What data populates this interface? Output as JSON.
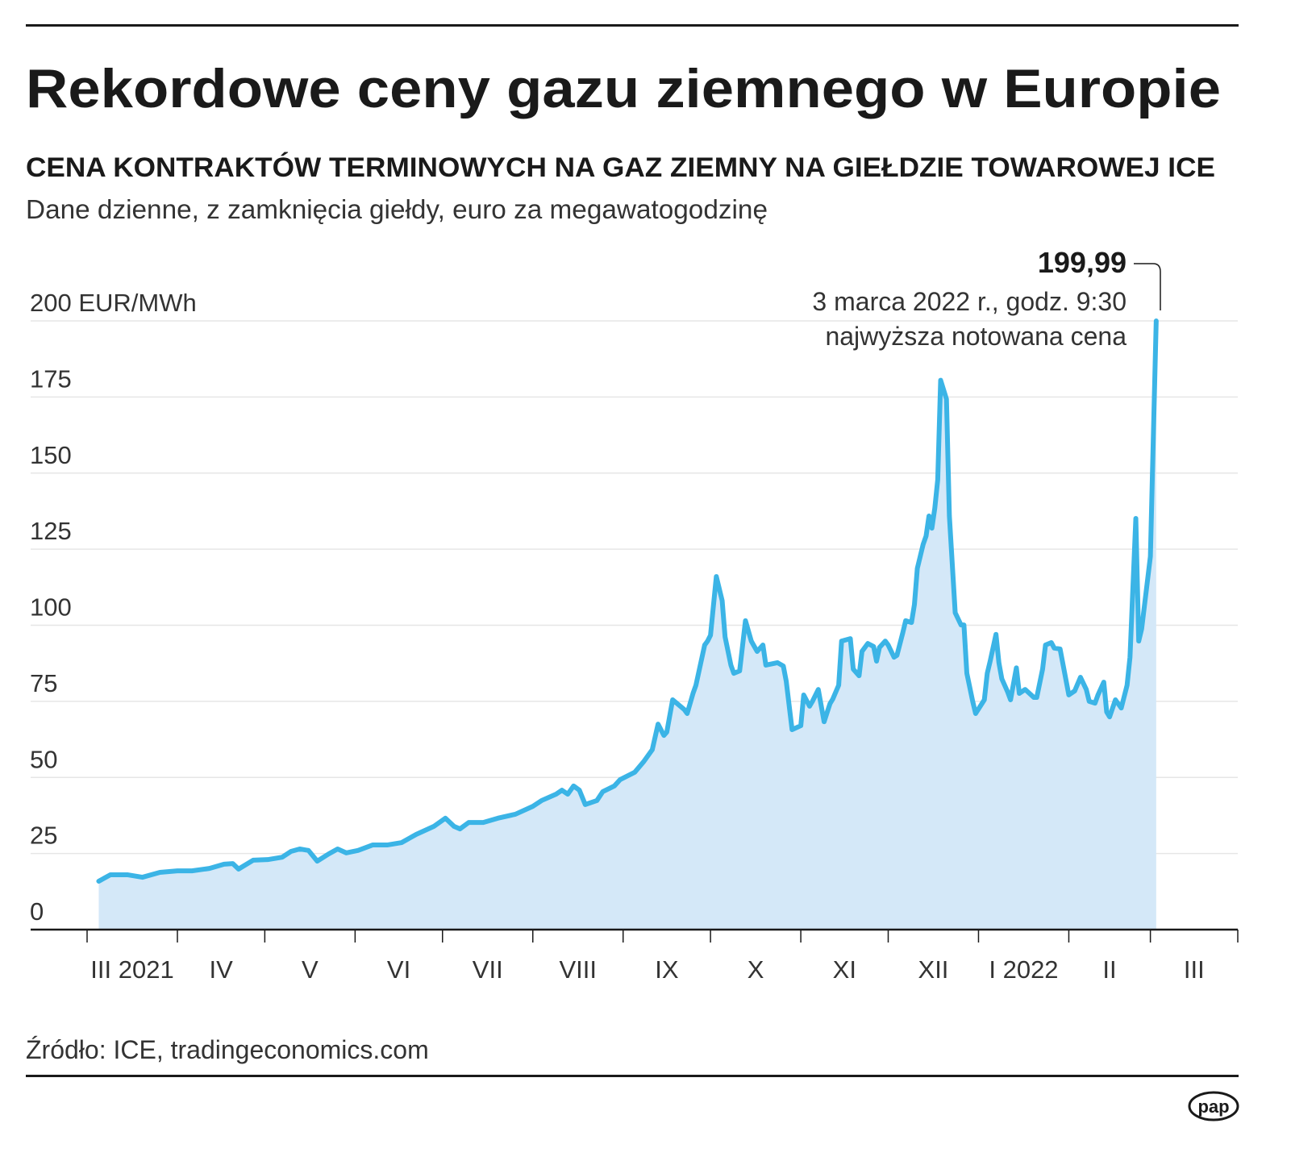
{
  "header": {
    "title": "Rekordowe ceny gazu ziemnego w Europie",
    "subtitle": "CENA KONTRAKTÓW TERMINOWYCH NA GAZ ZIEMNY NA GIEŁDZIE TOWAROWEJ ICE",
    "description": "Dane dzienne, z zamknięcia giełdy, euro za megawatogodzinę"
  },
  "footer": {
    "source": "Źródło: ICE, tradingeconomics.com",
    "logo": "pap"
  },
  "colors": {
    "line": "#3bb4e6",
    "area": "#d4e8f8",
    "grid": "#e6e6e6",
    "axis": "#1a1a1a"
  },
  "chart_data": {
    "type": "area",
    "title": "",
    "xlabel": "",
    "ylabel": "EUR/MWh",
    "ylim": [
      0,
      200
    ],
    "xlim": [
      "2021-03-01",
      "2022-03-31"
    ],
    "grid": true,
    "y_ticks": [
      {
        "value": 0,
        "label": "0"
      },
      {
        "value": 25,
        "label": "25"
      },
      {
        "value": 50,
        "label": "50"
      },
      {
        "value": 75,
        "label": "75"
      },
      {
        "value": 100,
        "label": "100"
      },
      {
        "value": 125,
        "label": "125"
      },
      {
        "value": 150,
        "label": "150"
      },
      {
        "value": 175,
        "label": "175"
      },
      {
        "value": 200,
        "label": "200 EUR/MWh"
      }
    ],
    "x_ticks": [
      {
        "start": "2021-03-01",
        "end": "2021-04-01",
        "label": "III 2021"
      },
      {
        "start": "2021-04-01",
        "end": "2021-05-01",
        "label": "IV"
      },
      {
        "start": "2021-05-01",
        "end": "2021-06-01",
        "label": "V"
      },
      {
        "start": "2021-06-01",
        "end": "2021-07-01",
        "label": "VI"
      },
      {
        "start": "2021-07-01",
        "end": "2021-08-01",
        "label": "VII"
      },
      {
        "start": "2021-08-01",
        "end": "2021-09-01",
        "label": "VIII"
      },
      {
        "start": "2021-09-01",
        "end": "2021-10-01",
        "label": "IX"
      },
      {
        "start": "2021-10-01",
        "end": "2021-11-01",
        "label": "X"
      },
      {
        "start": "2021-11-01",
        "end": "2021-12-01",
        "label": "XI"
      },
      {
        "start": "2021-12-01",
        "end": "2022-01-01",
        "label": "XII"
      },
      {
        "start": "2022-01-01",
        "end": "2022-02-01",
        "label": "I 2022"
      },
      {
        "start": "2022-02-01",
        "end": "2022-03-01",
        "label": "II"
      },
      {
        "start": "2022-03-01",
        "end": "2022-04-01",
        "label": "III"
      }
    ],
    "series": [
      {
        "x": [
          "2021-03-05",
          "2021-03-09",
          "2021-03-15",
          "2021-03-20",
          "2021-03-26",
          "2021-04-01",
          "2021-04-06",
          "2021-04-12",
          "2021-04-17",
          "2021-04-20",
          "2021-04-22",
          "2021-04-27",
          "2021-05-02",
          "2021-05-07",
          "2021-05-10",
          "2021-05-13",
          "2021-05-16",
          "2021-05-19",
          "2021-05-23",
          "2021-05-26",
          "2021-05-29",
          "2021-06-02",
          "2021-06-07",
          "2021-06-12",
          "2021-06-17",
          "2021-06-22",
          "2021-06-28",
          "2021-07-02",
          "2021-07-05",
          "2021-07-07",
          "2021-07-10",
          "2021-07-15",
          "2021-07-20",
          "2021-07-26",
          "2021-08-01",
          "2021-08-04",
          "2021-08-09",
          "2021-08-11",
          "2021-08-13",
          "2021-08-15",
          "2021-08-17",
          "2021-08-19",
          "2021-08-23",
          "2021-08-25",
          "2021-08-29",
          "2021-08-31",
          "2021-09-05",
          "2021-09-08",
          "2021-09-11",
          "2021-09-13",
          "2021-09-15",
          "2021-09-16",
          "2021-09-18",
          "2021-09-22",
          "2021-09-23",
          "2021-09-25",
          "2021-09-26",
          "2021-09-29",
          "2021-09-30",
          "2021-10-01",
          "2021-10-03",
          "2021-10-05",
          "2021-10-06",
          "2021-10-08",
          "2021-10-09",
          "2021-10-11",
          "2021-10-13",
          "2021-10-15",
          "2021-10-17",
          "2021-10-19",
          "2021-10-20",
          "2021-10-24",
          "2021-10-26",
          "2021-10-27",
          "2021-10-29",
          "2021-11-01",
          "2021-11-02",
          "2021-11-04",
          "2021-11-05",
          "2021-11-07",
          "2021-11-09",
          "2021-11-11",
          "2021-11-12",
          "2021-11-14",
          "2021-11-15",
          "2021-11-18",
          "2021-11-19",
          "2021-11-21",
          "2021-11-22",
          "2021-11-24",
          "2021-11-26",
          "2021-11-27",
          "2021-11-28",
          "2021-11-30",
          "2021-12-01",
          "2021-12-03",
          "2021-12-04",
          "2021-12-06",
          "2021-12-07",
          "2021-12-09",
          "2021-12-10",
          "2021-12-11",
          "2021-12-13",
          "2021-12-14",
          "2021-12-15",
          "2021-12-16",
          "2021-12-17",
          "2021-12-18",
          "2021-12-19",
          "2021-12-21",
          "2021-12-22",
          "2021-12-24",
          "2021-12-26",
          "2021-12-27",
          "2021-12-28",
          "2021-12-30",
          "2021-12-31",
          "2022-01-03",
          "2022-01-04",
          "2022-01-05",
          "2022-01-07",
          "2022-01-08",
          "2022-01-09",
          "2022-01-11",
          "2022-01-12",
          "2022-01-14",
          "2022-01-15",
          "2022-01-17",
          "2022-01-20",
          "2022-01-21",
          "2022-01-23",
          "2022-01-24",
          "2022-01-26",
          "2022-01-27",
          "2022-01-29",
          "2022-02-01",
          "2022-02-03",
          "2022-02-05",
          "2022-02-07",
          "2022-02-08",
          "2022-02-10",
          "2022-02-11",
          "2022-02-13",
          "2022-02-14",
          "2022-02-15",
          "2022-02-17",
          "2022-02-19",
          "2022-02-21",
          "2022-02-22",
          "2022-02-24",
          "2022-02-25",
          "2022-02-26",
          "2022-03-01",
          "2022-03-03"
        ],
        "values": [
          15.9,
          18.0,
          18.0,
          17.2,
          18.8,
          19.3,
          19.3,
          20.1,
          21.5,
          21.7,
          19.9,
          22.8,
          23.0,
          23.8,
          25.7,
          26.5,
          26.0,
          22.5,
          24.9,
          26.5,
          25.2,
          26.0,
          27.8,
          27.8,
          28.6,
          31.3,
          33.9,
          36.6,
          33.9,
          33.1,
          35.2,
          35.2,
          36.6,
          37.9,
          40.5,
          42.4,
          44.5,
          45.8,
          44.5,
          47.2,
          45.8,
          41.1,
          42.4,
          45.3,
          47.2,
          49.3,
          51.7,
          55.1,
          59.1,
          67.5,
          63.8,
          64.9,
          75.5,
          72.3,
          71.0,
          77.6,
          80.3,
          93.5,
          94.8,
          96.7,
          116.0,
          108.1,
          96.2,
          86.9,
          84.2,
          85.0,
          101.5,
          94.8,
          91.4,
          93.5,
          86.9,
          87.7,
          86.6,
          81.6,
          65.7,
          67.0,
          77.1,
          73.4,
          75.0,
          78.9,
          68.3,
          74.2,
          75.8,
          80.3,
          94.8,
          95.6,
          85.6,
          83.4,
          91.4,
          94.0,
          93.0,
          88.2,
          92.7,
          94.8,
          93.5,
          89.5,
          90.1,
          97.5,
          101.5,
          100.9,
          106.8,
          118.7,
          126.6,
          129.3,
          135.9,
          131.9,
          138.5,
          147.8,
          180.5,
          174.3,
          135.9,
          104.1,
          100.1,
          100.1,
          84.2,
          75.0,
          71.0,
          75.5,
          84.2,
          88.2,
          97.0,
          87.7,
          82.4,
          78.1,
          75.5,
          86.0,
          77.6,
          78.9,
          76.3,
          76.3,
          85.6,
          93.5,
          94.3,
          92.5,
          92.2,
          77.1,
          78.4,
          82.9,
          78.9,
          75.0,
          74.4,
          77.1,
          81.3,
          71.5,
          69.9,
          75.5,
          72.8,
          80.3,
          89.5,
          135.1,
          94.8,
          98.8,
          122.6,
          199.99
        ]
      }
    ],
    "annotation": {
      "date": "2022-03-03",
      "value_label": "199,99",
      "line1": "3 marca 2022 r., godz. 9:30",
      "line2": "najwyższa notowana cena"
    }
  }
}
